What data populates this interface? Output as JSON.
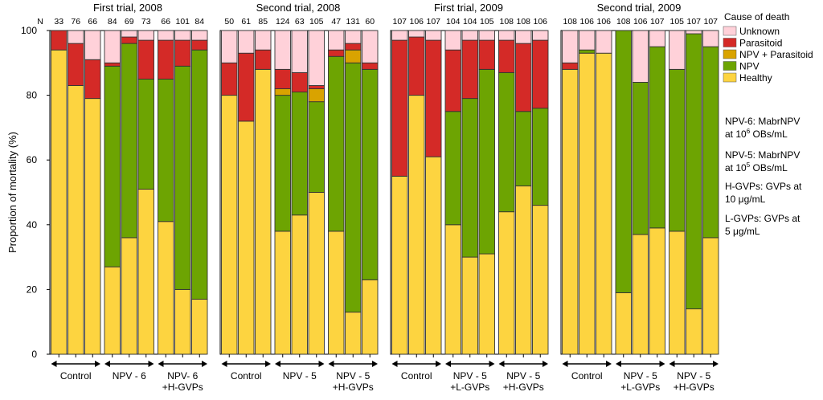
{
  "chart_data": {
    "type": "bar",
    "stacked": true,
    "ylabel": "Proportion of mortality   (%)",
    "ylim": [
      0,
      100
    ],
    "yticks": [
      0,
      20,
      40,
      60,
      80,
      100
    ],
    "n_prefix": "N",
    "legend": {
      "title": "Cause of death",
      "entries": [
        {
          "name": "Unknown",
          "color": "#ffd1d9"
        },
        {
          "name": "Parasitoid",
          "color": "#d42a27"
        },
        {
          "name": "NPV + Parasitoid",
          "color": "#d9a300"
        },
        {
          "name": "NPV",
          "color": "#6da402"
        },
        {
          "name": "Healthy",
          "color": "#fdd440"
        }
      ]
    },
    "stack_order": [
      "Healthy",
      "NPV",
      "NPV + Parasitoid",
      "Parasitoid",
      "Unknown"
    ],
    "notes": [
      {
        "lines": [
          "NPV-6: MabrNPV",
          "at 10",
          "6",
          " OBs/mL"
        ]
      },
      {
        "lines": [
          "NPV-5: MabrNPV",
          "at 10",
          "5",
          " OBs/mL"
        ]
      },
      {
        "lines": [
          "H-GVPs: GVPs at",
          "10 ",
          "μ",
          "g/mL"
        ]
      },
      {
        "lines": [
          "L-GVPs: GVPs at",
          "5 ",
          "μ",
          "g/mL"
        ]
      }
    ],
    "panels": [
      {
        "title": "First trial, 2008",
        "groups": [
          {
            "label": [
              "Control"
            ],
            "bars": [
              {
                "n": "33",
                "values": [
                  94,
                  0,
                  0,
                  6,
                  0
                ]
              },
              {
                "n": "76",
                "values": [
                  83,
                  0,
                  0,
                  13,
                  4
                ]
              },
              {
                "n": "66",
                "values": [
                  79,
                  0,
                  0,
                  12,
                  9
                ]
              }
            ]
          },
          {
            "label": [
              "NPV - 6"
            ],
            "bars": [
              {
                "n": "84",
                "values": [
                  27,
                  62,
                  0,
                  1,
                  10
                ]
              },
              {
                "n": "69",
                "values": [
                  36,
                  60,
                  0,
                  2,
                  2
                ]
              },
              {
                "n": "73",
                "values": [
                  51,
                  34,
                  0,
                  12,
                  3
                ]
              }
            ]
          },
          {
            "label": [
              "NPV- 6",
              "+H-GVPs"
            ],
            "bars": [
              {
                "n": "66",
                "values": [
                  41,
                  44,
                  0,
                  12,
                  3
                ]
              },
              {
                "n": "101",
                "values": [
                  20,
                  69,
                  0,
                  8,
                  3
                ]
              },
              {
                "n": "84",
                "values": [
                  17,
                  77,
                  0,
                  3,
                  3
                ]
              }
            ]
          }
        ]
      },
      {
        "title": "Second trial, 2008",
        "groups": [
          {
            "label": [
              "Control"
            ],
            "bars": [
              {
                "n": "50",
                "values": [
                  80,
                  0,
                  0,
                  10,
                  10
                ]
              },
              {
                "n": "61",
                "values": [
                  72,
                  0,
                  0,
                  21,
                  7
                ]
              },
              {
                "n": "85",
                "values": [
                  88,
                  0,
                  0,
                  6,
                  6
                ]
              }
            ]
          },
          {
            "label": [
              "NPV - 5"
            ],
            "bars": [
              {
                "n": "124",
                "values": [
                  38,
                  42,
                  2,
                  6,
                  12
                ]
              },
              {
                "n": "63",
                "values": [
                  43,
                  38,
                  0,
                  6,
                  13
                ]
              },
              {
                "n": "105",
                "values": [
                  50,
                  28,
                  4,
                  1,
                  17
                ]
              }
            ]
          },
          {
            "label": [
              "NPV - 5",
              "+H-GVPs"
            ],
            "bars": [
              {
                "n": "47",
                "values": [
                  38,
                  54,
                  0,
                  2,
                  6
                ]
              },
              {
                "n": "131",
                "values": [
                  13,
                  77,
                  4,
                  2,
                  4
                ]
              },
              {
                "n": "60",
                "values": [
                  23,
                  65,
                  0,
                  2,
                  10
                ]
              }
            ]
          }
        ]
      },
      {
        "title": "First trial, 2009",
        "groups": [
          {
            "label": [
              "Control"
            ],
            "bars": [
              {
                "n": "107",
                "values": [
                  55,
                  0,
                  0,
                  42,
                  3
                ]
              },
              {
                "n": "106",
                "values": [
                  80,
                  0,
                  0,
                  18,
                  2
                ]
              },
              {
                "n": "107",
                "values": [
                  61,
                  0,
                  0,
                  36,
                  3
                ]
              }
            ]
          },
          {
            "label": [
              "NPV - 5",
              "+L-GVPs"
            ],
            "bars": [
              {
                "n": "104",
                "values": [
                  40,
                  35,
                  0,
                  19,
                  6
                ]
              },
              {
                "n": "104",
                "values": [
                  30,
                  49,
                  0,
                  18,
                  3
                ]
              },
              {
                "n": "105",
                "values": [
                  31,
                  57,
                  0,
                  9,
                  3
                ]
              }
            ]
          },
          {
            "label": [
              "NPV - 5",
              "+H-GVPs"
            ],
            "bars": [
              {
                "n": "108",
                "values": [
                  44,
                  43,
                  0,
                  10,
                  3
                ]
              },
              {
                "n": "108",
                "values": [
                  52,
                  23,
                  0,
                  21,
                  4
                ]
              },
              {
                "n": "106",
                "values": [
                  46,
                  30,
                  0,
                  21,
                  3
                ]
              }
            ]
          }
        ]
      },
      {
        "title": "Second trial, 2009",
        "groups": [
          {
            "label": [
              "Control"
            ],
            "bars": [
              {
                "n": "108",
                "values": [
                  88,
                  0,
                  0,
                  2,
                  10
                ]
              },
              {
                "n": "106",
                "values": [
                  93,
                  1,
                  0,
                  0,
                  6
                ]
              },
              {
                "n": "106",
                "values": [
                  93,
                  0,
                  0,
                  0,
                  7
                ]
              }
            ]
          },
          {
            "label": [
              "NPV - 5",
              "+L-GVPs"
            ],
            "bars": [
              {
                "n": "108",
                "values": [
                  19,
                  81,
                  0,
                  0,
                  0
                ]
              },
              {
                "n": "106",
                "values": [
                  37,
                  47,
                  0,
                  0,
                  16
                ]
              },
              {
                "n": "107",
                "values": [
                  39,
                  56,
                  0,
                  0,
                  5
                ]
              }
            ]
          },
          {
            "label": [
              "NPV - 5",
              "+H-GVPs"
            ],
            "bars": [
              {
                "n": "105",
                "values": [
                  38,
                  50,
                  0,
                  0,
                  12
                ]
              },
              {
                "n": "107",
                "values": [
                  14,
                  85,
                  0,
                  0,
                  1
                ]
              },
              {
                "n": "107",
                "values": [
                  36,
                  59,
                  0,
                  0,
                  5
                ]
              }
            ]
          }
        ]
      }
    ]
  }
}
